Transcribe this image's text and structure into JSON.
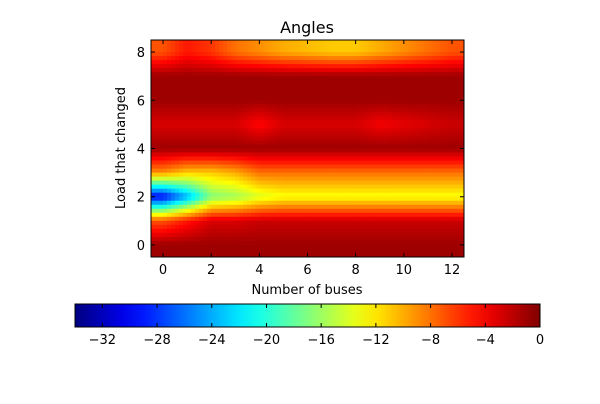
{
  "chart_data": {
    "type": "heatmap",
    "title": "Angles",
    "xlabel": "Number of buses",
    "ylabel": "Load that changed",
    "x_ticks": [
      "0",
      "2",
      "4",
      "6",
      "8",
      "10",
      "12"
    ],
    "y_ticks": [
      "0",
      "2",
      "4",
      "6",
      "8"
    ],
    "x_categories": [
      0,
      1,
      2,
      3,
      4,
      5,
      6,
      7,
      8,
      9,
      10,
      11,
      12
    ],
    "y_categories": [
      0,
      1,
      2,
      3,
      4,
      5,
      6,
      7,
      8
    ],
    "xlim": [
      -0.5,
      12.5
    ],
    "ylim": [
      8.5,
      -0.5
    ],
    "colormap": "jet",
    "vmin": -34,
    "vmax": 0,
    "interpolation": "smooth",
    "values": [
      [
        -1,
        -1,
        -1,
        -1,
        -1,
        -1,
        -1,
        -1,
        -1,
        -1,
        -1,
        -1,
        -1
      ],
      [
        -7,
        -5,
        -3,
        -3,
        -2.5,
        -2.5,
        -2.5,
        -2.5,
        -2.5,
        -2.5,
        -2.5,
        -2.5,
        -2.5
      ],
      [
        -30,
        -24,
        -17,
        -16,
        -14,
        -13,
        -13,
        -13,
        -13,
        -13,
        -13,
        -13,
        -13
      ],
      [
        -9,
        -11,
        -11,
        -10,
        -8,
        -8,
        -8,
        -8,
        -8,
        -8,
        -8,
        -8,
        -8
      ],
      [
        -1,
        -1,
        -1,
        -1,
        -1,
        -1,
        -1,
        -1,
        -1,
        -1,
        -1,
        -1,
        -1
      ],
      [
        -3,
        -3,
        -3,
        -3,
        -4.5,
        -3,
        -3,
        -3,
        -3,
        -4,
        -3.5,
        -3,
        -2.5
      ],
      [
        -1,
        -1,
        -1,
        -1,
        -1,
        -1,
        -1,
        -1,
        -1,
        -1,
        -1,
        -1,
        -1
      ],
      [
        -1,
        -1,
        -1,
        -1,
        -1,
        -1,
        -1,
        -1,
        -1,
        -1,
        -1,
        -1,
        -1
      ],
      [
        -7,
        -5,
        -6,
        -8,
        -9,
        -10,
        -10.5,
        -11,
        -11,
        -10,
        -9,
        -8,
        -7
      ]
    ],
    "colorbar": {
      "orientation": "horizontal",
      "ticks": [
        "−32",
        "−28",
        "−24",
        "−20",
        "−16",
        "−12",
        "−8",
        "−4",
        "0"
      ],
      "tick_values": [
        -32,
        -28,
        -24,
        -20,
        -16,
        -12,
        -8,
        -4,
        0
      ]
    }
  }
}
